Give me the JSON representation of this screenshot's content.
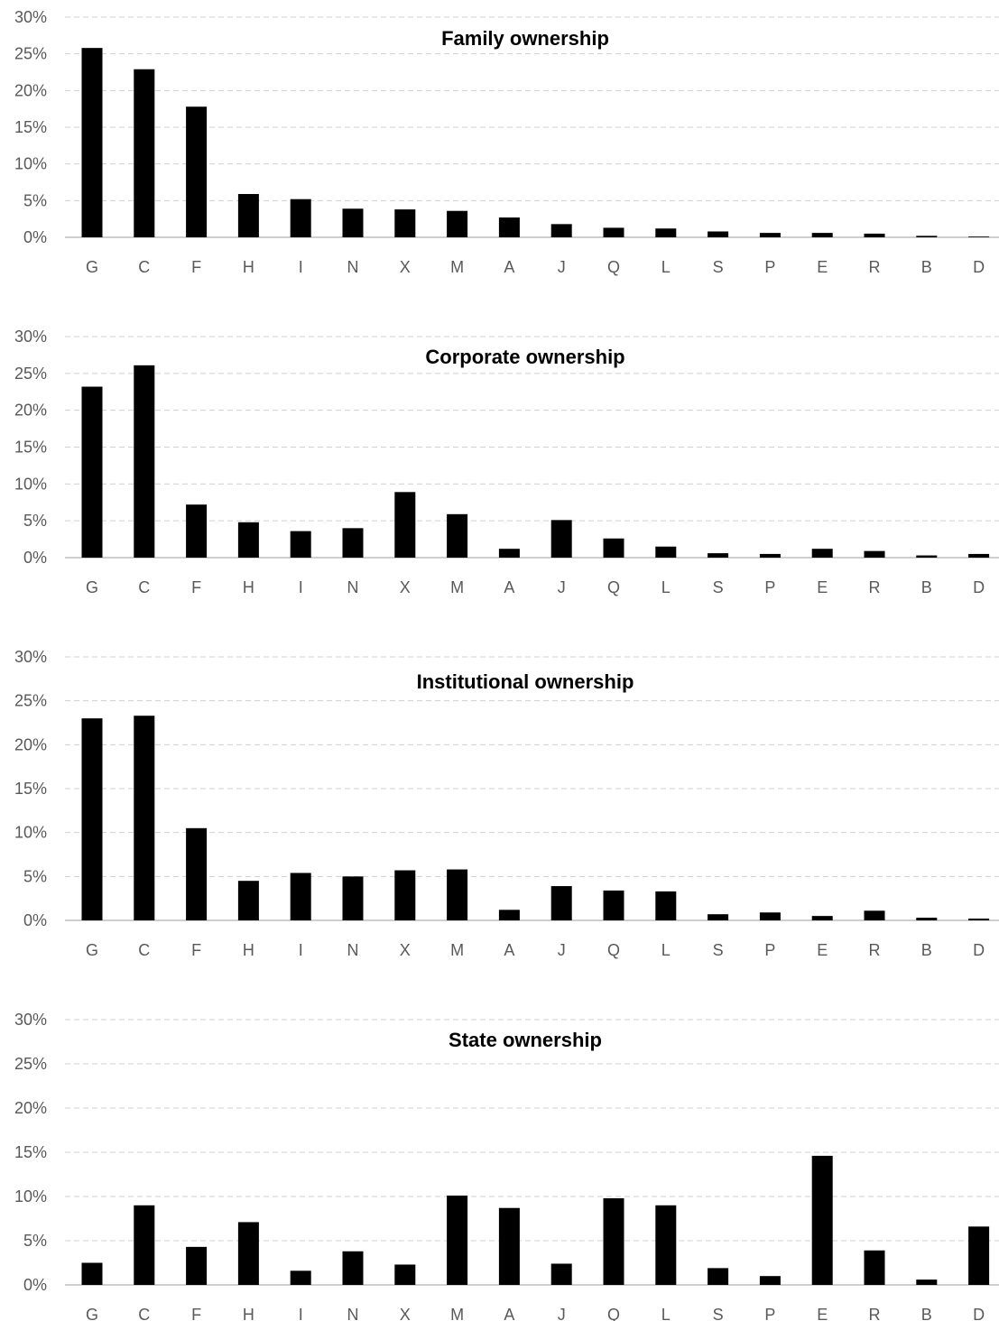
{
  "chart_data": [
    {
      "type": "bar",
      "title": "Family ownership",
      "categories": [
        "G",
        "C",
        "F",
        "H",
        "I",
        "N",
        "X",
        "M",
        "A",
        "J",
        "Q",
        "L",
        "S",
        "P",
        "E",
        "R",
        "B",
        "D"
      ],
      "values": [
        25.8,
        22.9,
        17.8,
        5.9,
        5.2,
        3.9,
        3.8,
        3.6,
        2.7,
        1.8,
        1.3,
        1.2,
        0.8,
        0.6,
        0.6,
        0.5,
        0.2,
        0.1
      ],
      "ylim": [
        0,
        30
      ],
      "yticks": [
        "0%",
        "5%",
        "10%",
        "15%",
        "20%",
        "25%",
        "30%"
      ],
      "grid": true,
      "legend": "none"
    },
    {
      "type": "bar",
      "title": "Corporate ownership",
      "categories": [
        "G",
        "C",
        "F",
        "H",
        "I",
        "N",
        "X",
        "M",
        "A",
        "J",
        "Q",
        "L",
        "S",
        "P",
        "E",
        "R",
        "B",
        "D"
      ],
      "values": [
        23.2,
        26.1,
        7.2,
        4.8,
        3.6,
        4.0,
        8.9,
        5.9,
        1.2,
        5.1,
        2.6,
        1.5,
        0.6,
        0.5,
        1.2,
        0.9,
        0.3,
        0.5
      ],
      "ylim": [
        0,
        30
      ],
      "yticks": [
        "0%",
        "5%",
        "10%",
        "15%",
        "20%",
        "25%",
        "30%"
      ],
      "grid": true,
      "legend": "none"
    },
    {
      "type": "bar",
      "title": "Institutional ownership",
      "categories": [
        "G",
        "C",
        "F",
        "H",
        "I",
        "N",
        "X",
        "M",
        "A",
        "J",
        "Q",
        "L",
        "S",
        "P",
        "E",
        "R",
        "B",
        "D"
      ],
      "values": [
        23.0,
        23.3,
        10.5,
        4.5,
        5.4,
        5.0,
        5.7,
        5.8,
        1.2,
        3.9,
        3.4,
        3.3,
        0.7,
        0.9,
        0.5,
        1.1,
        0.3,
        0.2
      ],
      "ylim": [
        0,
        30
      ],
      "yticks": [
        "0%",
        "5%",
        "10%",
        "15%",
        "20%",
        "25%",
        "30%"
      ],
      "grid": true,
      "legend": "none"
    },
    {
      "type": "bar",
      "title": "State ownership",
      "categories": [
        "G",
        "C",
        "F",
        "H",
        "I",
        "N",
        "X",
        "M",
        "A",
        "J",
        "Q",
        "L",
        "S",
        "P",
        "E",
        "R",
        "B",
        "D"
      ],
      "values": [
        2.5,
        9.0,
        4.3,
        7.1,
        1.6,
        3.8,
        2.3,
        10.1,
        8.7,
        2.4,
        9.8,
        9.0,
        1.9,
        1.0,
        14.6,
        3.9,
        0.6,
        6.6
      ],
      "ylim": [
        0,
        30
      ],
      "yticks": [
        "0%",
        "5%",
        "10%",
        "15%",
        "20%",
        "25%",
        "30%"
      ],
      "grid": true,
      "legend": "none"
    }
  ]
}
